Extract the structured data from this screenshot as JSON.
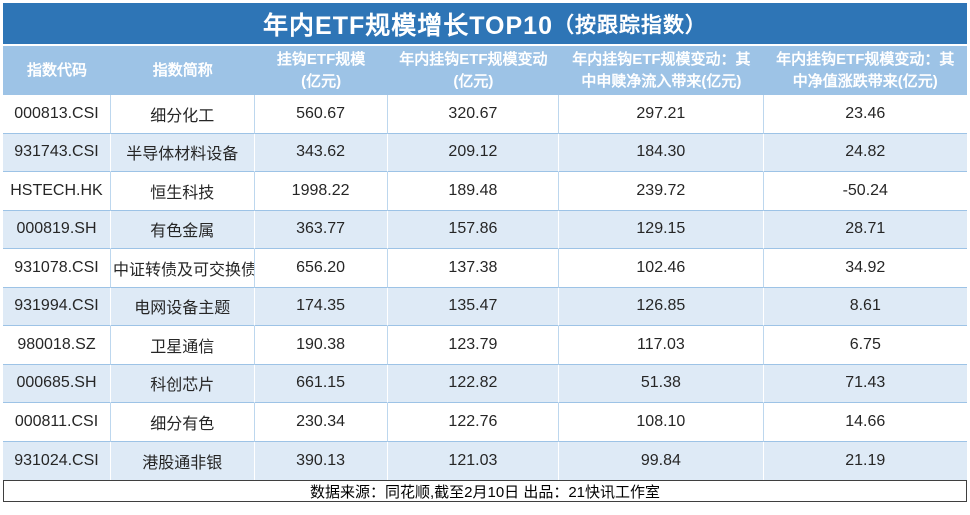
{
  "chart_data": {
    "type": "table",
    "title": "年内ETF规模增长TOP10（按跟踪指数）",
    "title_main": "年内ETF规模增长TOP10",
    "title_suffix": "（按跟踪指数）",
    "columns": [
      "指数代码",
      "指数简称",
      "挂钩ETF规模\n(亿元)",
      "年内挂钩ETF规模变动\n(亿元)",
      "年内挂钩ETF规模变动：其\n中申赎净流入带来(亿元)",
      "年内挂钩ETF规模变动：其\n中净值涨跌带来(亿元)"
    ],
    "rows": [
      [
        "000813.CSI",
        "细分化工",
        "560.67",
        "320.67",
        "297.21",
        "23.46"
      ],
      [
        "931743.CSI",
        "半导体材料设备",
        "343.62",
        "209.12",
        "184.30",
        "24.82"
      ],
      [
        "HSTECH.HK",
        "恒生科技",
        "1998.22",
        "189.48",
        "239.72",
        "-50.24"
      ],
      [
        "000819.SH",
        "有色金属",
        "363.77",
        "157.86",
        "129.15",
        "28.71"
      ],
      [
        "931078.CSI",
        "中证转债及可交换债",
        "656.20",
        "137.38",
        "102.46",
        "34.92"
      ],
      [
        "931994.CSI",
        "电网设备主题",
        "174.35",
        "135.47",
        "126.85",
        "8.61"
      ],
      [
        "980018.SZ",
        "卫星通信",
        "190.38",
        "123.79",
        "117.03",
        "6.75"
      ],
      [
        "000685.SH",
        "科创芯片",
        "661.15",
        "122.82",
        "51.38",
        "71.43"
      ],
      [
        "000811.CSI",
        "细分有色",
        "230.34",
        "122.76",
        "108.10",
        "14.66"
      ],
      [
        "931024.CSI",
        "港股通非银",
        "390.13",
        "121.03",
        "99.84",
        "21.19"
      ]
    ],
    "footnote": "数据来源：同花顺,截至2月10日  出品：21快讯工作室"
  },
  "colors": {
    "title_bar": "#2E75B6",
    "header_bg": "#9DC3E6",
    "alt_row_bg": "#DEEAF6",
    "row_border": "#9DC3E6",
    "footer_border": "#3F3F3F",
    "text": "#262626"
  }
}
